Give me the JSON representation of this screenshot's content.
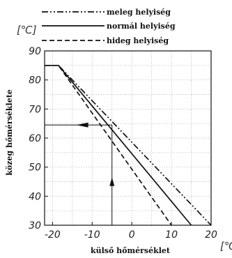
{
  "chart_data": {
    "type": "line",
    "xlabel": "külső hőmérséklet",
    "ylabel": "közeg hőmérséklete",
    "y_unit": "[℃]",
    "x_unit": "[℃",
    "xlim": [
      -22,
      20
    ],
    "ylim": [
      30,
      90
    ],
    "x_ticks": [
      -20,
      -10,
      0,
      10,
      20
    ],
    "y_ticks": [
      30,
      40,
      50,
      60,
      70,
      80,
      90
    ],
    "grid": true,
    "legend_position": "top",
    "series": [
      {
        "name": "meleg helyiség",
        "dash": "dash-dot-dot",
        "x": [
          -22,
          -18.5,
          20
        ],
        "y": [
          85,
          85,
          30
        ]
      },
      {
        "name": "normál helyiség",
        "dash": "solid",
        "x": [
          -22,
          -18.5,
          15
        ],
        "y": [
          85,
          85,
          30
        ]
      },
      {
        "name": "hideg helyiség",
        "dash": "dashed",
        "x": [
          -22,
          -18.5,
          10
        ],
        "y": [
          85,
          85,
          30
        ]
      }
    ],
    "annotation": {
      "vertical_arrow": {
        "x": -5,
        "from_y": 30,
        "to_y": 64.5
      },
      "horizontal_arrow": {
        "y": 64.5,
        "from_x": -5,
        "to_x": -22
      }
    }
  }
}
